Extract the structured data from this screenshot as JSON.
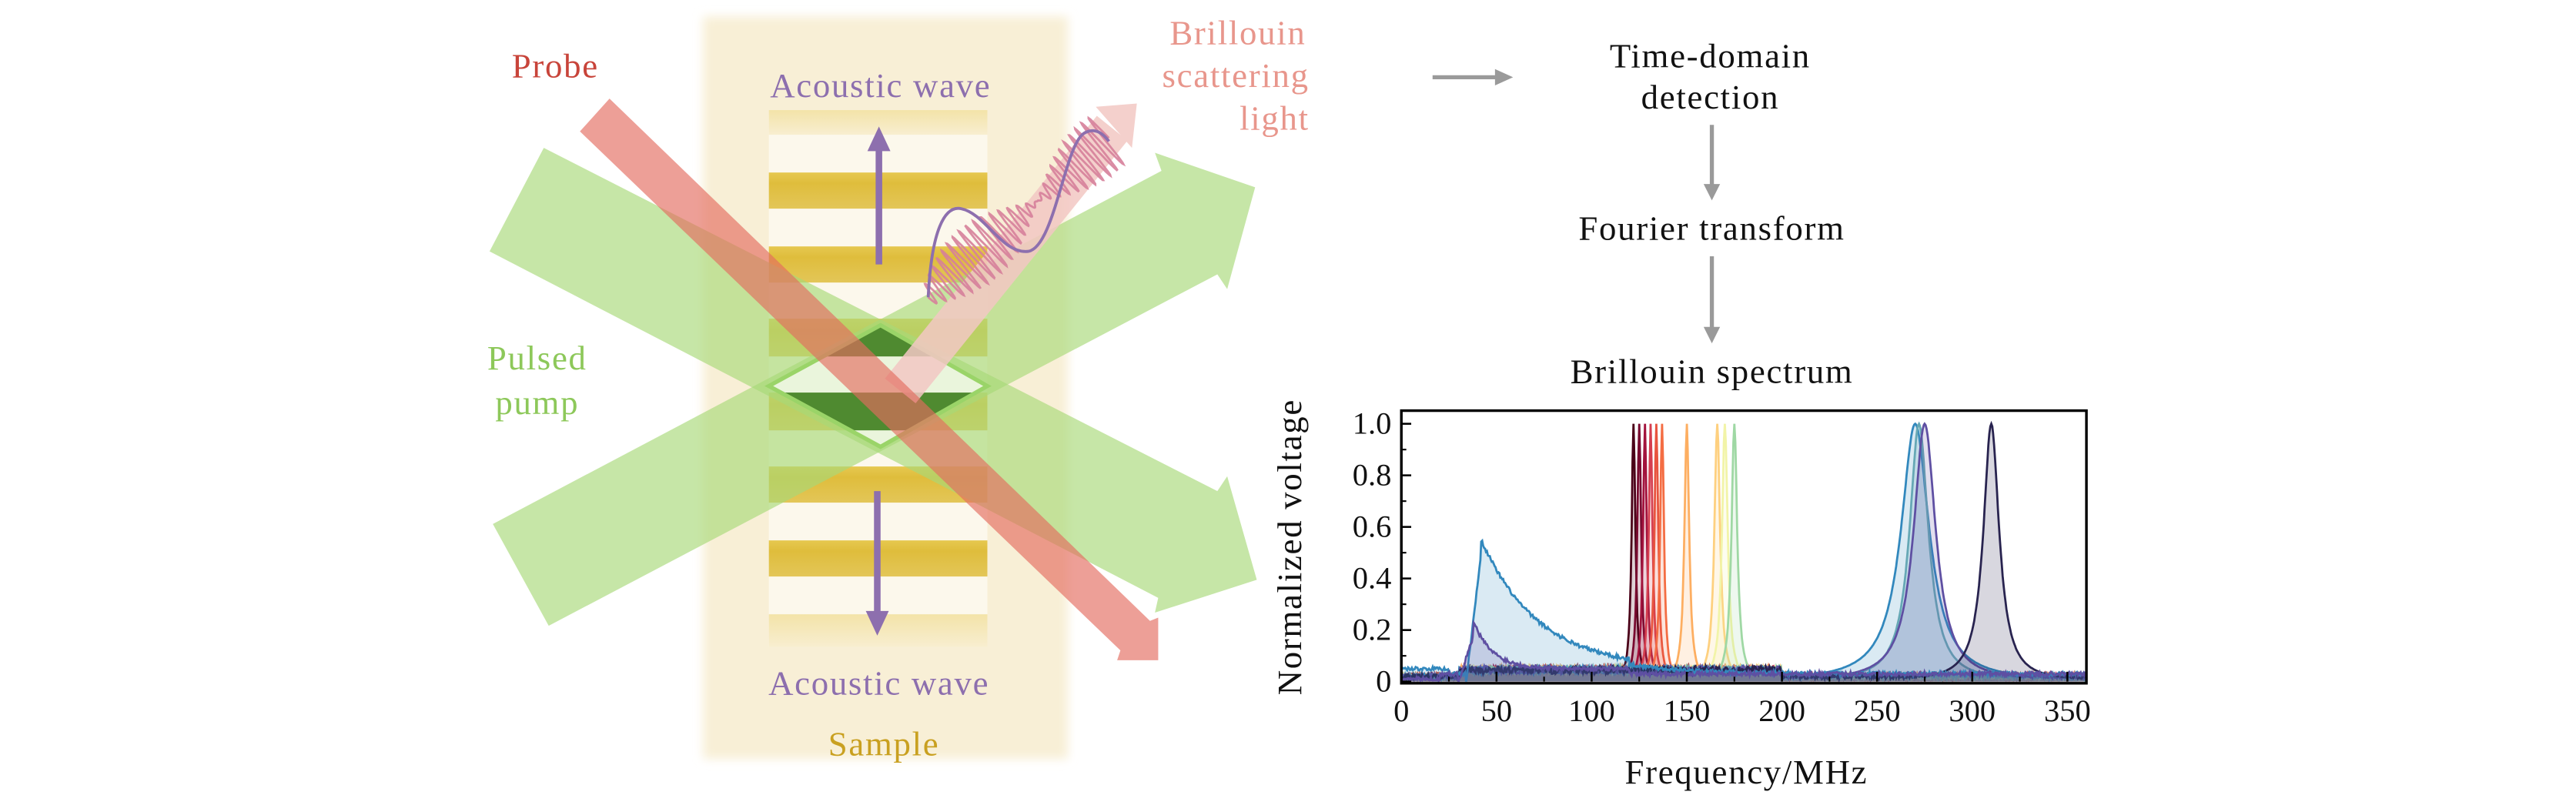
{
  "labels": {
    "probe": "Probe",
    "acoustic_top": "Acoustic wave",
    "acoustic_bottom": "Acoustic wave",
    "sample": "Sample",
    "pump_line1": "Pulsed",
    "pump_line2": "pump",
    "brillouin_line1": "Brillouin",
    "brillouin_line2": "scattering",
    "brillouin_line3": "light",
    "detection_line1": "Time-domain",
    "detection_line2": "detection",
    "fourier": "Fourier transform",
    "spectrum": "Brillouin spectrum"
  },
  "colors": {
    "probe": "#c8443a",
    "acoustic": "#8d6fae",
    "sample": "#c9a020",
    "pump": "#8dc85a",
    "brillouin": "#e8968c",
    "flow_arrow": "#9a9a9a"
  },
  "chart_data": {
    "type": "line",
    "title": "Brillouin spectrum",
    "xlabel": "Frequency/MHz",
    "ylabel": "Normalized voltage",
    "xlim": [
      0,
      360
    ],
    "ylim": [
      0,
      1.05
    ],
    "xticks": [
      "0",
      "50",
      "100",
      "150",
      "200",
      "250",
      "300",
      "350"
    ],
    "xtick_values": [
      0,
      50,
      100,
      150,
      200,
      250,
      300,
      350
    ],
    "yticks": [
      "0",
      "0.2",
      "0.4",
      "0.6",
      "0.8",
      "1.0"
    ],
    "ytick_values": [
      0,
      0.2,
      0.4,
      0.6,
      0.8,
      1.0
    ],
    "grid": false,
    "series": [
      {
        "center": 122,
        "peak": 1.0,
        "width_mhz": 1.2,
        "color": "#4a0018"
      },
      {
        "center": 125,
        "peak": 1.0,
        "width_mhz": 1.2,
        "color": "#7a0a30"
      },
      {
        "center": 128,
        "peak": 1.0,
        "width_mhz": 1.2,
        "color": "#a3133d"
      },
      {
        "center": 131,
        "peak": 1.0,
        "width_mhz": 1.2,
        "color": "#d53e4f"
      },
      {
        "center": 134,
        "peak": 1.0,
        "width_mhz": 1.2,
        "color": "#e8543f"
      },
      {
        "center": 137,
        "peak": 1.0,
        "width_mhz": 1.2,
        "color": "#f46d43"
      },
      {
        "center": 150,
        "peak": 1.0,
        "width_mhz": 1.5,
        "color": "#fdae61"
      },
      {
        "center": 166,
        "peak": 1.0,
        "width_mhz": 1.8,
        "color": "#fed07f"
      },
      {
        "center": 170,
        "peak": 1.0,
        "width_mhz": 1.8,
        "color": "#f2f4a8"
      },
      {
        "center": 175,
        "peak": 1.0,
        "width_mhz": 1.8,
        "color": "#9fd8a4"
      },
      {
        "center": 270,
        "peak": 1.0,
        "width_mhz": 9,
        "color": "#3288bd"
      },
      {
        "center": 272,
        "peak": 1.0,
        "width_mhz": 6,
        "color": "#66a8b5"
      },
      {
        "center": 275,
        "peak": 1.0,
        "width_mhz": 7,
        "color": "#5e4fa2"
      },
      {
        "center": 310,
        "peak": 1.0,
        "width_mhz": 5,
        "color": "#28234f"
      },
      {
        "center": 42,
        "peak": 0.5,
        "width_mhz": 30,
        "color": "#3288bd",
        "broad": true
      },
      {
        "center": 38,
        "peak": 0.18,
        "width_mhz": 10,
        "color": "#5e4fa2",
        "broad": true
      }
    ]
  }
}
